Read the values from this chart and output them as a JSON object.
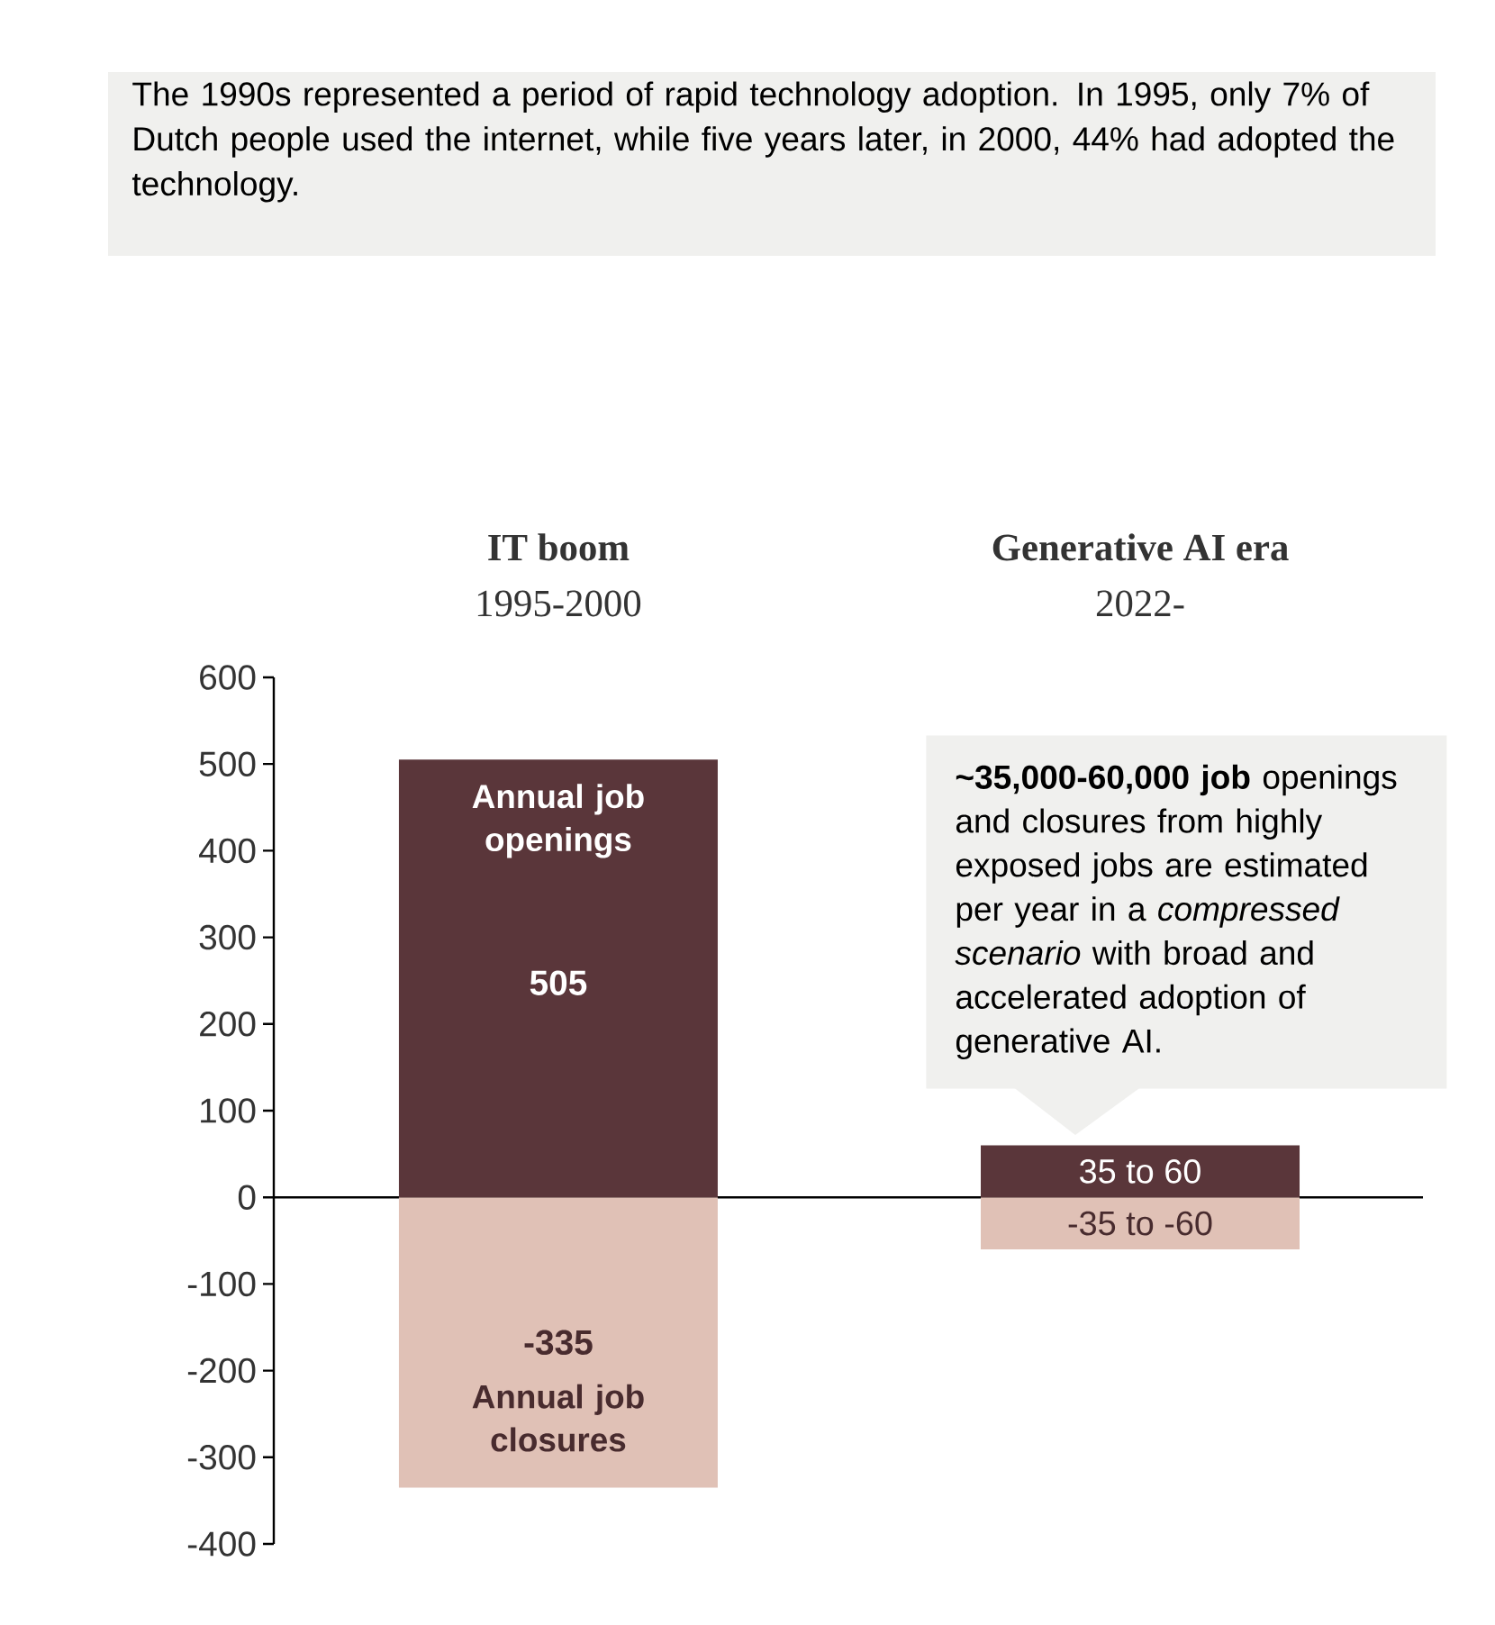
{
  "chart_data": {
    "type": "bar",
    "categories": [
      "IT boom",
      "Generative AI era"
    ],
    "series": [
      {
        "name": "Annual job openings",
        "color": "#5a363a",
        "values": [
          505,
          60
        ],
        "value_labels": [
          "505",
          "35 to 60"
        ]
      },
      {
        "name": "Annual job closures",
        "color": "#e0c1b6",
        "values": [
          -335,
          -60
        ],
        "value_labels": [
          "-335",
          "-35 to -60"
        ]
      }
    ],
    "stacked": true,
    "ylim": [
      -400,
      600
    ],
    "yticks": [
      -400,
      -300,
      -200,
      -100,
      0,
      100,
      200,
      300,
      400,
      500,
      600
    ],
    "annotations": [
      "The 1990s represented a period of rapid technology adoption. In 1995, only 7% of Dutch people used the internet, while five years later, in 2000, 44% had adopted the technology.",
      "1995-2000",
      "2022-",
      "**~35,000-60,000 job** openings and closures from highly exposed jobs are estimated per year in a *compressed scenario* with broad and accelerated adoption of generative AI."
    ]
  }
}
